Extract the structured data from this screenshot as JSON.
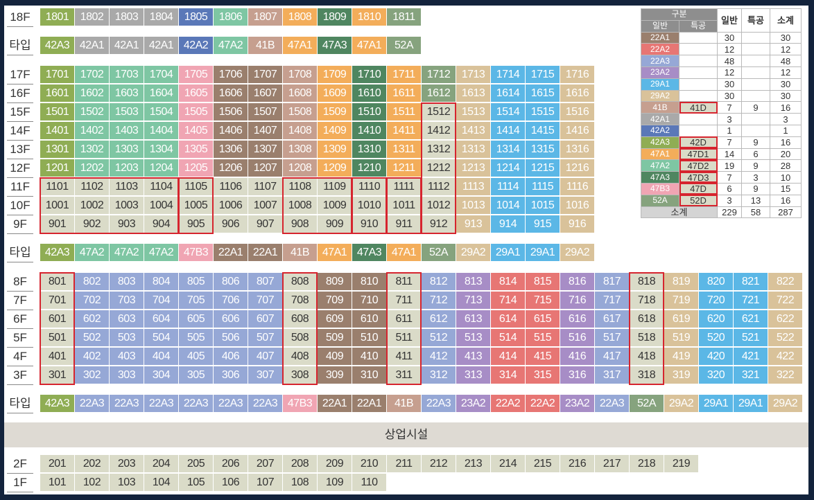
{
  "colors": {
    "22A1": "#9a7f6d",
    "22A2": "#e77674",
    "22A3": "#96a8d6",
    "23A2": "#a78dc6",
    "29A1": "#5bb7e6",
    "29A2": "#d9c29a",
    "41B": "#c69f8f",
    "42A1": "#a9a9a9",
    "42A2": "#5a78b8",
    "42A3": "#8fad54",
    "47A1": "#f3ad5a",
    "47A2": "#7ec6a3",
    "47A3": "#4f8660",
    "47B3": "#f0a5b3",
    "52A": "#86a37e",
    "pale": "#dadbc8"
  },
  "upper": {
    "floors": [
      {
        "label": "18F",
        "units": [
          "1801",
          "1802",
          "1803",
          "1804",
          "1805",
          "1806",
          "1807",
          "1808",
          "1809",
          "1810",
          "1811"
        ]
      },
      {
        "label": "17F",
        "units": [
          "1701",
          "1702",
          "1703",
          "1704",
          "1705",
          "1706",
          "1707",
          "1708",
          "1709",
          "1710",
          "1711",
          "1712",
          "1713",
          "1714",
          "1715",
          "1716"
        ]
      },
      {
        "label": "16F",
        "units": [
          "1601",
          "1602",
          "1603",
          "1604",
          "1605",
          "1606",
          "1607",
          "1608",
          "1609",
          "1610",
          "1611",
          "1612",
          "1613",
          "1614",
          "1615",
          "1616"
        ]
      },
      {
        "label": "15F",
        "units": [
          "1501",
          "1502",
          "1503",
          "1504",
          "1505",
          "1506",
          "1507",
          "1508",
          "1509",
          "1510",
          "1511",
          "1512",
          "1513",
          "1514",
          "1515",
          "1516"
        ]
      },
      {
        "label": "14F",
        "units": [
          "1401",
          "1402",
          "1403",
          "1404",
          "1405",
          "1406",
          "1407",
          "1408",
          "1409",
          "1410",
          "1411",
          "1412",
          "1413",
          "1414",
          "1415",
          "1416"
        ]
      },
      {
        "label": "13F",
        "units": [
          "1301",
          "1302",
          "1303",
          "1304",
          "1305",
          "1306",
          "1307",
          "1308",
          "1309",
          "1310",
          "1311",
          "1312",
          "1313",
          "1314",
          "1315",
          "1316"
        ]
      },
      {
        "label": "12F",
        "units": [
          "1201",
          "1202",
          "1203",
          "1204",
          "1205",
          "1206",
          "1207",
          "1208",
          "1209",
          "1210",
          "1211",
          "1212",
          "1213",
          "1214",
          "1215",
          "1216"
        ]
      },
      {
        "label": "11F",
        "units": [
          "1101",
          "1102",
          "1103",
          "1104",
          "1105",
          "1106",
          "1107",
          "1108",
          "1109",
          "1110",
          "1111",
          "1112",
          "1113",
          "1114",
          "1115",
          "1116"
        ]
      },
      {
        "label": "10F",
        "units": [
          "1001",
          "1002",
          "1003",
          "1004",
          "1005",
          "1006",
          "1007",
          "1008",
          "1009",
          "1010",
          "1011",
          "1012",
          "1013",
          "1014",
          "1015",
          "1016"
        ]
      },
      {
        "label": "9F",
        "units": [
          "901",
          "902",
          "903",
          "904",
          "905",
          "906",
          "907",
          "908",
          "909",
          "910",
          "911",
          "912",
          "913",
          "914",
          "915",
          "916"
        ]
      }
    ],
    "type_row_18": {
      "label": "타입",
      "types": [
        "42A3",
        "42A1",
        "42A1",
        "42A1",
        "42A2",
        "47A2",
        "41B",
        "47A1",
        "47A3",
        "47A1",
        "52A"
      ]
    },
    "type_row_17": {
      "label": "타입",
      "types": [
        "42A3",
        "47A2",
        "47A2",
        "47A2",
        "47B3",
        "22A1",
        "22A1",
        "41B",
        "47A1",
        "47A3",
        "47A1",
        "52A",
        "29A2",
        "29A1",
        "29A1",
        "29A2"
      ]
    }
  },
  "lower": {
    "floors": [
      {
        "label": "8F",
        "units": [
          "801",
          "802",
          "803",
          "804",
          "805",
          "806",
          "807",
          "808",
          "809",
          "810",
          "811",
          "812",
          "813",
          "814",
          "815",
          "816",
          "817",
          "818",
          "819",
          "820",
          "821",
          "822"
        ]
      },
      {
        "label": "7F",
        "units": [
          "701",
          "702",
          "703",
          "704",
          "705",
          "706",
          "707",
          "708",
          "709",
          "710",
          "711",
          "712",
          "713",
          "714",
          "715",
          "716",
          "717",
          "718",
          "719",
          "720",
          "721",
          "722"
        ]
      },
      {
        "label": "6F",
        "units": [
          "601",
          "602",
          "603",
          "604",
          "605",
          "606",
          "607",
          "608",
          "609",
          "610",
          "611",
          "612",
          "613",
          "614",
          "615",
          "616",
          "617",
          "618",
          "619",
          "620",
          "621",
          "622"
        ]
      },
      {
        "label": "5F",
        "units": [
          "501",
          "502",
          "503",
          "504",
          "505",
          "506",
          "507",
          "508",
          "509",
          "510",
          "511",
          "512",
          "513",
          "514",
          "515",
          "516",
          "517",
          "518",
          "519",
          "520",
          "521",
          "522"
        ]
      },
      {
        "label": "4F",
        "units": [
          "401",
          "402",
          "403",
          "404",
          "405",
          "406",
          "407",
          "408",
          "409",
          "410",
          "411",
          "412",
          "413",
          "414",
          "415",
          "416",
          "417",
          "418",
          "419",
          "420",
          "421",
          "422"
        ]
      },
      {
        "label": "3F",
        "units": [
          "301",
          "302",
          "303",
          "304",
          "305",
          "306",
          "307",
          "308",
          "309",
          "310",
          "311",
          "312",
          "313",
          "314",
          "315",
          "316",
          "317",
          "318",
          "319",
          "320",
          "321",
          "322"
        ]
      }
    ],
    "type_row": {
      "label": "타입",
      "types": [
        "42A3",
        "22A3",
        "22A3",
        "22A3",
        "22A3",
        "22A3",
        "22A3",
        "47B3",
        "22A1",
        "22A1",
        "41B",
        "22A3",
        "23A2",
        "22A2",
        "22A2",
        "23A2",
        "22A3",
        "52A",
        "29A2",
        "29A1",
        "29A1",
        "29A2"
      ]
    }
  },
  "commercial": {
    "label": "상업시설"
  },
  "ground": {
    "floors": [
      {
        "label": "2F",
        "units": [
          "201",
          "202",
          "203",
          "204",
          "205",
          "206",
          "207",
          "208",
          "209",
          "210",
          "211",
          "212",
          "213",
          "214",
          "215",
          "216",
          "217",
          "218",
          "219"
        ]
      },
      {
        "label": "1F",
        "units": [
          "101",
          "102",
          "103",
          "104",
          "105",
          "106",
          "107",
          "108",
          "109",
          "110"
        ]
      }
    ]
  },
  "summary": {
    "header": {
      "group": "구분",
      "general_type": "일반",
      "special_type": "특공",
      "general": "일반",
      "special": "특공",
      "subtotal": "소계"
    },
    "rows": [
      {
        "type": "22A1",
        "special_type": "",
        "general": "30",
        "special": "",
        "subtotal": "30"
      },
      {
        "type": "22A2",
        "special_type": "",
        "general": "12",
        "special": "",
        "subtotal": "12"
      },
      {
        "type": "22A3",
        "special_type": "",
        "general": "48",
        "special": "",
        "subtotal": "48"
      },
      {
        "type": "23A2",
        "special_type": "",
        "general": "12",
        "special": "",
        "subtotal": "12"
      },
      {
        "type": "29A1",
        "special_type": "",
        "general": "30",
        "special": "",
        "subtotal": "30"
      },
      {
        "type": "29A2",
        "special_type": "",
        "general": "30",
        "special": "",
        "subtotal": "30"
      },
      {
        "type": "41B",
        "special_type": "41D",
        "general": "7",
        "special": "9",
        "subtotal": "16"
      },
      {
        "type": "42A1",
        "special_type": "",
        "general": "3",
        "special": "",
        "subtotal": "3"
      },
      {
        "type": "42A2",
        "special_type": "",
        "general": "1",
        "special": "",
        "subtotal": "1"
      },
      {
        "type": "42A3",
        "special_type": "42D",
        "general": "7",
        "special": "9",
        "subtotal": "16"
      },
      {
        "type": "47A1",
        "special_type": "47D1",
        "general": "14",
        "special": "6",
        "subtotal": "20"
      },
      {
        "type": "47A2",
        "special_type": "47D2",
        "general": "19",
        "special": "9",
        "subtotal": "28"
      },
      {
        "type": "47A3",
        "special_type": "47D3",
        "general": "7",
        "special": "3",
        "subtotal": "10"
      },
      {
        "type": "47B3",
        "special_type": "47D",
        "general": "6",
        "special": "9",
        "subtotal": "15"
      },
      {
        "type": "52A",
        "special_type": "52D",
        "general": "3",
        "special": "13",
        "subtotal": "16"
      }
    ],
    "total": {
      "label": "소계",
      "general": "229",
      "special": "58",
      "subtotal": "287"
    }
  }
}
